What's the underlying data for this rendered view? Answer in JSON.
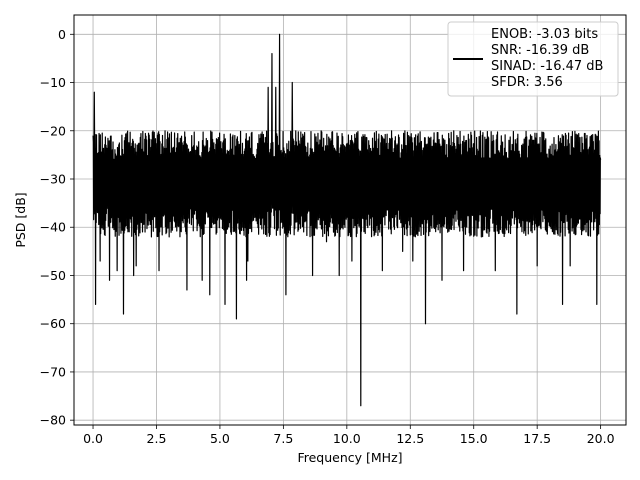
{
  "chart_data": {
    "type": "line",
    "title": "",
    "xlabel": "Frequency [MHz]",
    "ylabel": "PSD [dB]",
    "xlim": [
      -0.75,
      21.0
    ],
    "ylim": [
      -81,
      4
    ],
    "x_ticks": [
      0.0,
      2.5,
      5.0,
      7.5,
      10.0,
      12.5,
      15.0,
      17.5,
      20.0
    ],
    "x_tick_labels": [
      "0.0",
      "2.5",
      "5.0",
      "7.5",
      "10.0",
      "12.5",
      "15.0",
      "17.5",
      "20.0"
    ],
    "y_ticks": [
      0,
      -10,
      -20,
      -30,
      -40,
      -50,
      -60,
      -70,
      -80
    ],
    "y_tick_labels": [
      "0",
      "−10",
      "−20",
      "−30",
      "−40",
      "−50",
      "−60",
      "−70",
      "−80"
    ],
    "grid": true,
    "legend_position": "top-right",
    "legend": {
      "lines": [
        "ENOB: -3.03 bits",
        "SNR: -16.39 dB",
        "SINAD: -16.47 dB",
        "SFDR: 3.56"
      ]
    },
    "series": [
      {
        "color": "#000000",
        "noise_floor_db": [
          -42,
          -20
        ],
        "x": [
          0.0,
          0.05,
          0.1,
          0.28,
          0.55,
          0.65,
          0.95,
          1.2,
          1.6,
          1.7,
          2.6,
          3.0,
          3.7,
          4.3,
          4.6,
          5.2,
          5.65,
          6.05,
          6.1,
          6.9,
          7.05,
          7.2,
          7.35,
          7.6,
          7.85,
          8.65,
          9.2,
          9.7,
          10.2,
          10.55,
          11.4,
          12.2,
          12.6,
          13.1,
          13.75,
          14.6,
          15.3,
          15.85,
          16.7,
          17.5,
          18.5,
          18.8,
          19.85,
          20.0
        ],
        "y": [
          -21,
          -12,
          -56,
          -47,
          -24,
          -51,
          -49,
          -58,
          -50,
          -48,
          -49,
          -42,
          -53,
          -51,
          -54,
          -56,
          -59,
          -51,
          -47,
          -11,
          -4,
          -11,
          0,
          -54,
          -10,
          -50,
          -43,
          -50,
          -47,
          -77,
          -49,
          -45,
          -47,
          -60,
          -51,
          -49,
          -42,
          -49,
          -58,
          -48,
          -56,
          -48,
          -56,
          -26
        ]
      }
    ]
  }
}
